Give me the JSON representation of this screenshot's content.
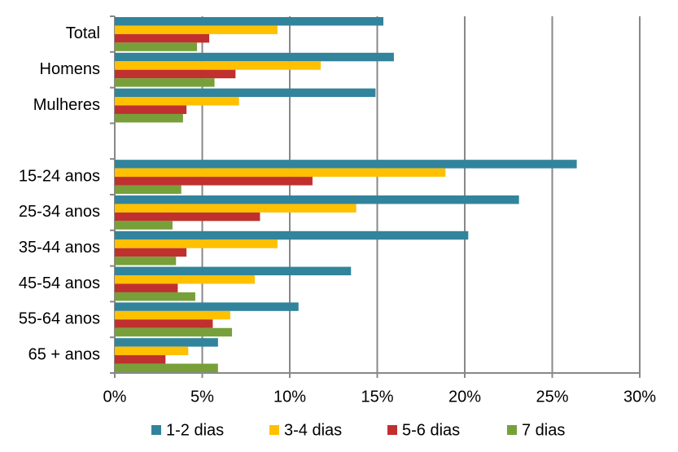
{
  "chart_data": {
    "type": "bar",
    "orientation": "horizontal",
    "categories": [
      "Total",
      "Homens",
      "Mulheres",
      null,
      "15-24 anos",
      "25-34 anos",
      "35-44 anos",
      "45-54 anos",
      "55-64 anos",
      "65 + anos"
    ],
    "series": [
      {
        "name": "1-2 dias",
        "color": "#31849b",
        "values": [
          15.35,
          15.95,
          14.9,
          null,
          26.4,
          23.1,
          20.2,
          13.5,
          10.5,
          5.9
        ]
      },
      {
        "name": "3-4 dias",
        "color": "#ffc000",
        "values": [
          9.3,
          11.77,
          7.1,
          null,
          18.9,
          13.8,
          9.3,
          8.0,
          6.6,
          4.2
        ]
      },
      {
        "name": "5-6 dias",
        "color": "#c0302f",
        "values": [
          5.4,
          6.9,
          4.1,
          null,
          11.3,
          8.3,
          4.1,
          3.6,
          5.6,
          2.9
        ]
      },
      {
        "name": "7 dias",
        "color": "#77a03a",
        "values": [
          4.7,
          5.7,
          3.9,
          null,
          3.8,
          3.3,
          3.5,
          4.6,
          6.7,
          5.9
        ]
      }
    ],
    "xlim": [
      0,
      30
    ],
    "xticks": [
      {
        "value": 0,
        "label": "0%"
      },
      {
        "value": 5,
        "label": "5%"
      },
      {
        "value": 10,
        "label": "10%"
      },
      {
        "value": 15,
        "label": "15%"
      },
      {
        "value": 20,
        "label": "20%"
      },
      {
        "value": 25,
        "label": "25%"
      },
      {
        "value": 30,
        "label": "30%"
      }
    ],
    "grid": true,
    "legend": "bottom"
  }
}
